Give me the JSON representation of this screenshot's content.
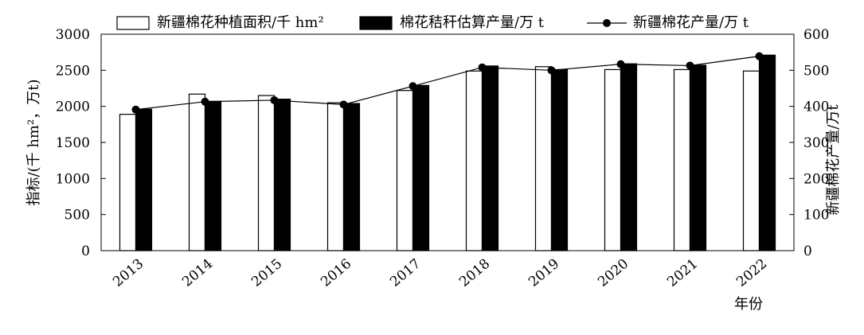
{
  "chart_data": {
    "type": "bar",
    "categories": [
      "2013",
      "2014",
      "2015",
      "2016",
      "2017",
      "2018",
      "2019",
      "2020",
      "2021",
      "2022"
    ],
    "series": [
      {
        "name": "新疆棉花种植面积/千 hm²",
        "kind": "bar",
        "axis": "left",
        "fill": "#ffffff",
        "values": [
          1890,
          2170,
          2150,
          2050,
          2220,
          2490,
          2550,
          2510,
          2510,
          2490
        ]
      },
      {
        "name": "棉花秸秆估算产量/万 t",
        "kind": "bar",
        "axis": "left",
        "fill": "#000000",
        "values": [
          1960,
          2070,
          2100,
          2040,
          2290,
          2560,
          2510,
          2590,
          2570,
          2710
        ]
      },
      {
        "name": "新疆棉花产量/万 t",
        "kind": "line",
        "axis": "right",
        "color": "#000000",
        "values": [
          391,
          413,
          417,
          405,
          456,
          508,
          500,
          517,
          513,
          539
        ]
      }
    ],
    "ylabel": "指标/(千 hm²，万t)",
    "y2label": "新疆棉花产量/万t",
    "xlabel": "年份",
    "ylim": [
      0,
      3000
    ],
    "y2lim": [
      0,
      600
    ],
    "yticks": [
      0,
      500,
      1000,
      1500,
      2000,
      2500,
      3000
    ],
    "y2ticks": [
      0,
      100,
      200,
      300,
      400,
      500,
      600
    ],
    "grid": false,
    "legend": "top"
  }
}
